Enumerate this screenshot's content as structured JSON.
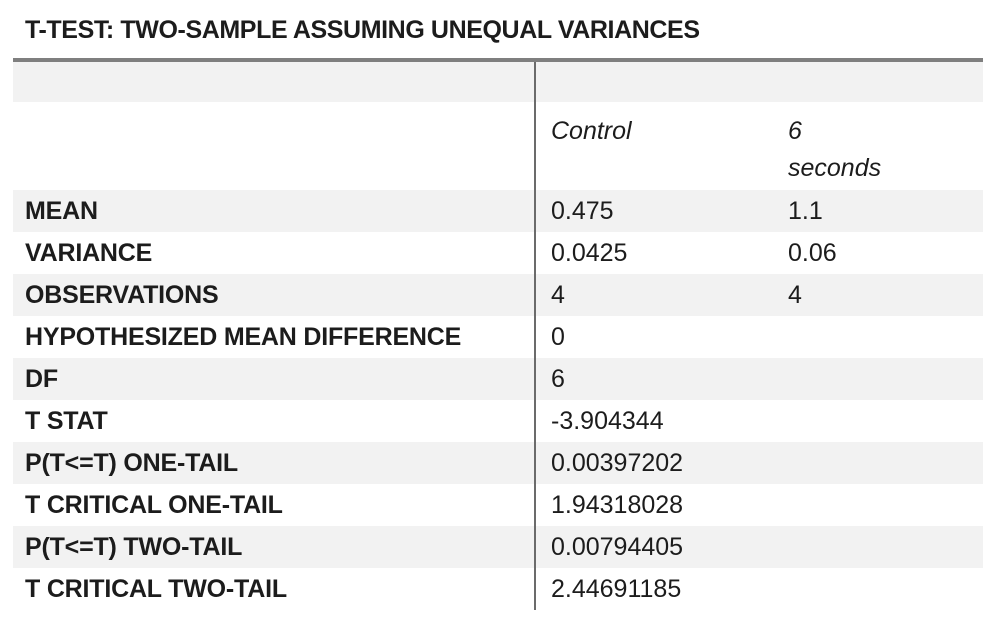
{
  "title": "T-TEST: TWO-SAMPLE ASSUMING UNEQUAL VARIANCES",
  "table": {
    "column_headers": {
      "col1": "Control",
      "col2": "6 seconds"
    },
    "rows": [
      {
        "label": "MEAN",
        "values": [
          "0.475",
          "1.1"
        ]
      },
      {
        "label": "VARIANCE",
        "values": [
          "0.0425",
          "0.06"
        ]
      },
      {
        "label": "OBSERVATIONS",
        "values": [
          "4",
          "4"
        ]
      },
      {
        "label": "HYPOTHESIZED MEAN DIFFERENCE",
        "values": [
          "0",
          ""
        ]
      },
      {
        "label": "DF",
        "values": [
          "6",
          ""
        ]
      },
      {
        "label": "T STAT",
        "values": [
          "-3.904344",
          ""
        ]
      },
      {
        "label": "P(T<=T) ONE-TAIL",
        "values": [
          "0.00397202",
          ""
        ]
      },
      {
        "label": "T CRITICAL ONE-TAIL",
        "values": [
          "1.94318028",
          ""
        ]
      },
      {
        "label": "P(T<=T) TWO-TAIL",
        "values": [
          "0.00794405",
          ""
        ]
      },
      {
        "label": "T CRITICAL TWO-TAIL",
        "values": [
          "2.44691185",
          ""
        ]
      }
    ]
  },
  "colors": {
    "background": "#ffffff",
    "row_shade": "#f2f2f2",
    "table_top_border": "#7f7f7f",
    "column_divider": "#6b6b6b",
    "text": "#1c1c1c"
  }
}
